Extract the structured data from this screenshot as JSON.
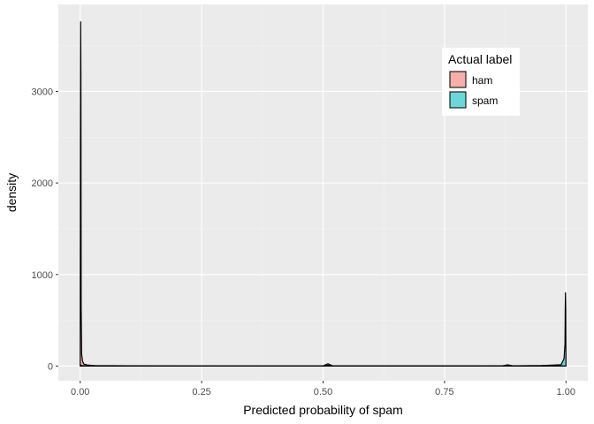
{
  "chart_data": {
    "type": "area",
    "xlabel": "Predicted probability of spam",
    "ylabel": "density",
    "xlim": [
      -0.045,
      1.045
    ],
    "ylim": [
      -160,
      3950
    ],
    "x_ticks": [
      {
        "value": 0,
        "label": "0.00"
      },
      {
        "value": 0.25,
        "label": "0.25"
      },
      {
        "value": 0.5,
        "label": "0.50"
      },
      {
        "value": 0.75,
        "label": "0.75"
      },
      {
        "value": 1,
        "label": "1.00"
      }
    ],
    "y_ticks": [
      {
        "value": 0,
        "label": "0"
      },
      {
        "value": 1000,
        "label": "1000"
      },
      {
        "value": 2000,
        "label": "2000"
      },
      {
        "value": 3000,
        "label": "3000"
      }
    ],
    "grid": true,
    "legend": {
      "title": "Actual label",
      "position": "top-right"
    },
    "series": [
      {
        "name": "ham",
        "color": "#F8766D",
        "points": [
          [
            0,
            0
          ],
          [
            0.0005,
            2450
          ],
          [
            0.001,
            3760
          ],
          [
            0.0015,
            3200
          ],
          [
            0.002,
            650
          ],
          [
            0.003,
            130
          ],
          [
            0.005,
            50
          ],
          [
            0.008,
            20
          ],
          [
            0.015,
            12
          ],
          [
            0.03,
            6
          ],
          [
            0.06,
            4
          ],
          [
            0.1,
            3
          ],
          [
            0.2,
            2
          ],
          [
            0.3,
            1
          ],
          [
            0.5,
            2
          ],
          [
            0.51,
            25
          ],
          [
            0.52,
            2
          ],
          [
            0.7,
            2
          ],
          [
            0.87,
            3
          ],
          [
            0.88,
            14
          ],
          [
            0.89,
            3
          ],
          [
            0.95,
            4
          ],
          [
            0.99,
            6
          ],
          [
            1,
            0
          ]
        ]
      },
      {
        "name": "spam",
        "color": "#00BFC4",
        "points": [
          [
            0,
            0
          ],
          [
            0.001,
            12
          ],
          [
            0.003,
            5
          ],
          [
            0.01,
            3
          ],
          [
            0.1,
            2
          ],
          [
            0.3,
            2
          ],
          [
            0.5,
            2
          ],
          [
            0.51,
            8
          ],
          [
            0.52,
            2
          ],
          [
            0.7,
            2
          ],
          [
            0.9,
            3
          ],
          [
            0.95,
            5
          ],
          [
            0.99,
            15
          ],
          [
            0.996,
            80
          ],
          [
            0.998,
            240
          ],
          [
            0.9985,
            600
          ],
          [
            0.999,
            800
          ],
          [
            0.9995,
            620
          ],
          [
            1,
            0
          ]
        ]
      }
    ]
  }
}
